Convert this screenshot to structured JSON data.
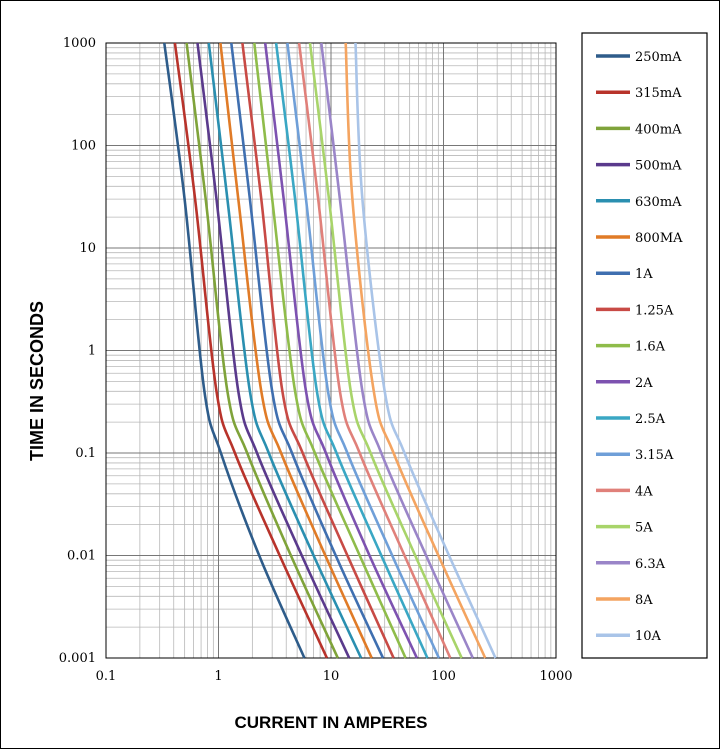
{
  "chart_data": {
    "type": "line",
    "xlabel": "CURRENT IN AMPERES",
    "ylabel": "TIME IN SECONDS",
    "x_scale": "log",
    "y_scale": "log",
    "xlim": [
      0.1,
      1000
    ],
    "ylim": [
      0.001,
      1000
    ],
    "grid": true,
    "legend_position": "right",
    "x_ticks": [
      {
        "value": 0.1,
        "label": "0.1"
      },
      {
        "value": 1,
        "label": "1"
      },
      {
        "value": 10,
        "label": "10"
      },
      {
        "value": 100,
        "label": "100"
      },
      {
        "value": 1000,
        "label": "1000"
      }
    ],
    "y_ticks": [
      {
        "value": 1000,
        "label": "1000"
      },
      {
        "value": 100,
        "label": "100"
      },
      {
        "value": 10,
        "label": "10"
      },
      {
        "value": 1,
        "label": "1"
      },
      {
        "value": 0.1,
        "label": "0.1"
      },
      {
        "value": 0.01,
        "label": "0.01"
      },
      {
        "value": 0.001,
        "label": "0.001"
      }
    ],
    "series": [
      {
        "name": "250mA",
        "color": "#2e5c8a",
        "x": [
          0.33,
          0.5,
          0.75,
          1.05,
          2.3,
          5.8
        ],
        "y": [
          1000,
          30,
          0.4,
          0.1,
          0.01,
          0.001
        ]
      },
      {
        "name": "315mA",
        "color": "#b8332b",
        "x": [
          0.41,
          0.62,
          0.96,
          1.4,
          3.5,
          9.2
        ],
        "y": [
          1000,
          30,
          0.4,
          0.1,
          0.01,
          0.001
        ]
      },
      {
        "name": "400mA",
        "color": "#7fa33a",
        "x": [
          0.52,
          0.77,
          1.2,
          1.8,
          4.4,
          11.5
        ],
        "y": [
          1000,
          30,
          0.4,
          0.1,
          0.01,
          0.001
        ]
      },
      {
        "name": "500mA",
        "color": "#5a3a8c",
        "x": [
          0.65,
          0.96,
          1.5,
          2.2,
          5.5,
          14.5
        ],
        "y": [
          1000,
          30,
          0.4,
          0.1,
          0.01,
          0.001
        ]
      },
      {
        "name": "630mA",
        "color": "#2a8fb0",
        "x": [
          0.82,
          1.2,
          1.9,
          2.8,
          7.0,
          18.5
        ],
        "y": [
          1000,
          30,
          0.4,
          0.1,
          0.01,
          0.001
        ]
      },
      {
        "name": "800MA",
        "color": "#e07b27",
        "x": [
          1.04,
          1.5,
          2.4,
          3.6,
          8.9,
          23
        ],
        "y": [
          1000,
          30,
          0.4,
          0.1,
          0.01,
          0.001
        ]
      },
      {
        "name": "1A",
        "color": "#3f6fb0",
        "x": [
          1.3,
          1.9,
          3.0,
          4.5,
          11,
          29
        ],
        "y": [
          1000,
          30,
          0.4,
          0.1,
          0.01,
          0.001
        ]
      },
      {
        "name": "1.25A",
        "color": "#c84a45",
        "x": [
          1.63,
          2.4,
          3.7,
          5.6,
          14,
          36
        ],
        "y": [
          1000,
          30,
          0.4,
          0.1,
          0.01,
          0.001
        ]
      },
      {
        "name": "1.6A",
        "color": "#8fbc4a",
        "x": [
          2.08,
          3.0,
          4.8,
          7.2,
          18,
          46
        ],
        "y": [
          1000,
          30,
          0.4,
          0.1,
          0.01,
          0.001
        ]
      },
      {
        "name": "2A",
        "color": "#7d52b0",
        "x": [
          2.6,
          3.8,
          6.0,
          9.0,
          22,
          58
        ],
        "y": [
          1000,
          30,
          0.4,
          0.1,
          0.01,
          0.001
        ]
      },
      {
        "name": "2.5A",
        "color": "#3aa7c4",
        "x": [
          3.25,
          4.8,
          7.5,
          11.2,
          28,
          72
        ],
        "y": [
          1000,
          30,
          0.4,
          0.1,
          0.01,
          0.001
        ]
      },
      {
        "name": "3.15A",
        "color": "#6f9fd8",
        "x": [
          4.1,
          6.0,
          9.4,
          14,
          35,
          91
        ],
        "y": [
          1000,
          30,
          0.4,
          0.1,
          0.01,
          0.001
        ]
      },
      {
        "name": "4A",
        "color": "#e0807a",
        "x": [
          5.2,
          7.7,
          12,
          18,
          45,
          115
        ],
        "y": [
          1000,
          30,
          0.4,
          0.1,
          0.01,
          0.001
        ]
      },
      {
        "name": "5A",
        "color": "#a8d46a",
        "x": [
          6.5,
          9.6,
          15,
          22.5,
          56,
          145
        ],
        "y": [
          1000,
          30,
          0.4,
          0.1,
          0.01,
          0.001
        ]
      },
      {
        "name": "6.3A",
        "color": "#9a85c8",
        "x": [
          8.2,
          12,
          19,
          28,
          70,
          182
        ],
        "y": [
          1000,
          30,
          0.4,
          0.1,
          0.01,
          0.001
        ]
      },
      {
        "name": "8A",
        "color": "#f4a460",
        "x": [
          13.5,
          15.5,
          24,
          36,
          90,
          235
        ],
        "y": [
          1000,
          30,
          0.4,
          0.1,
          0.01,
          0.001
        ]
      },
      {
        "name": "10A",
        "color": "#a9c4e8",
        "x": [
          16.5,
          19,
          30,
          45,
          112,
          290
        ],
        "y": [
          1000,
          30,
          0.4,
          0.1,
          0.01,
          0.001
        ]
      }
    ]
  }
}
